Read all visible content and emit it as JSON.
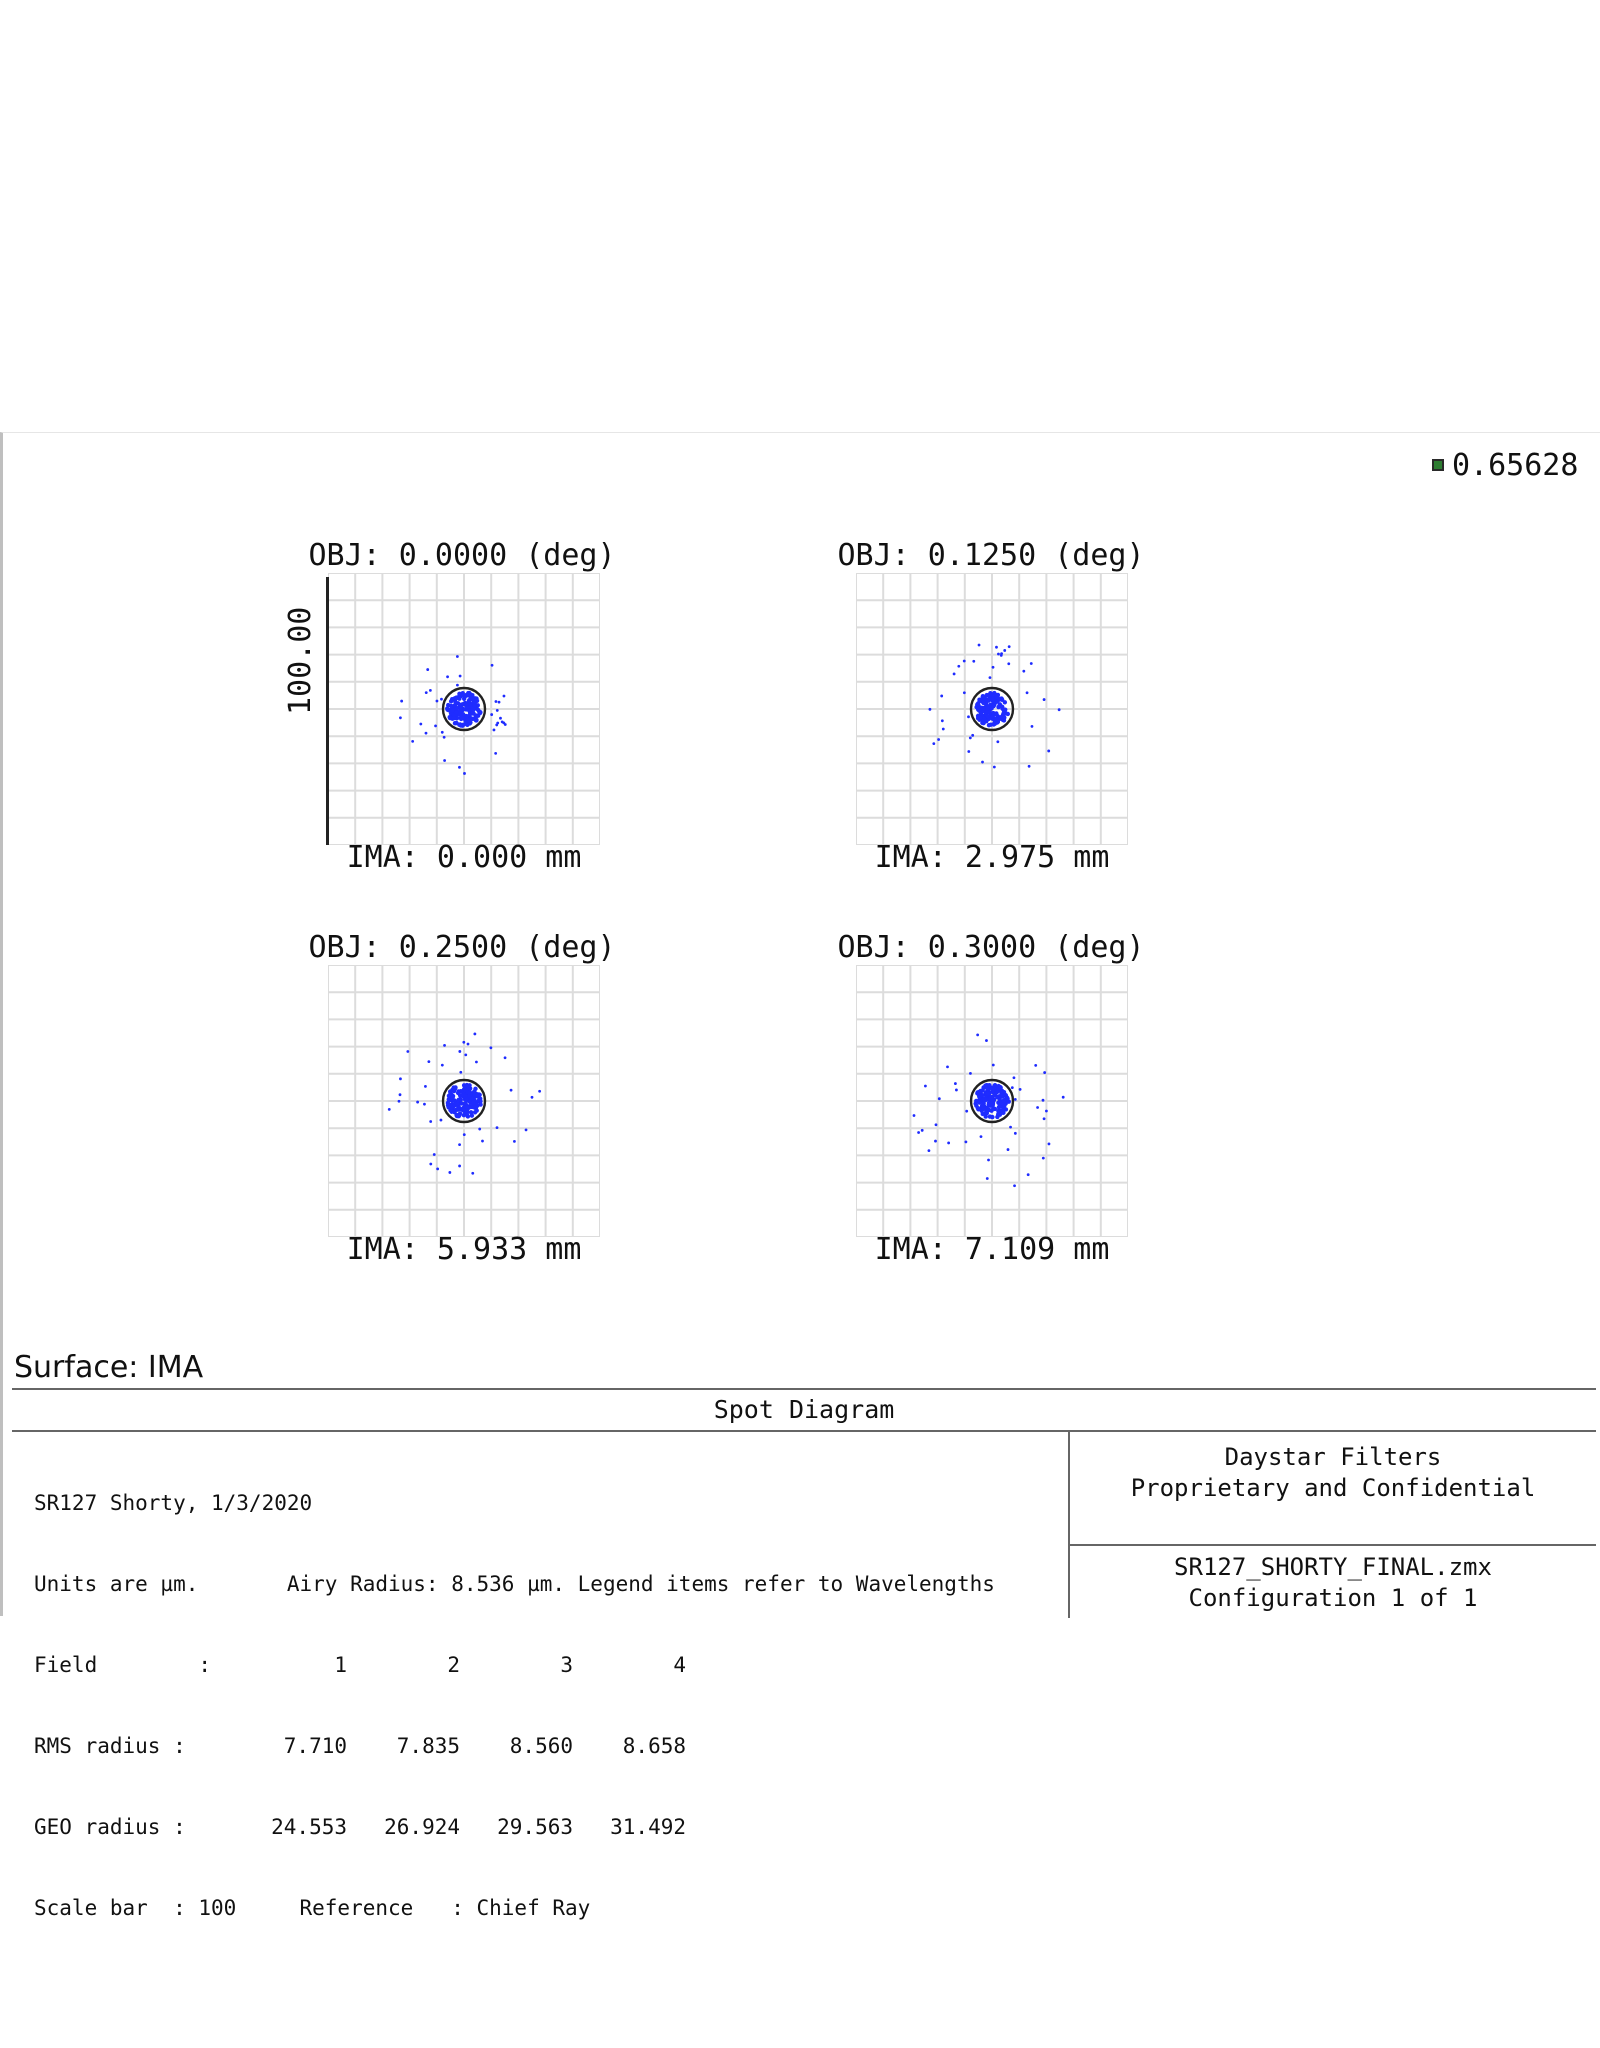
{
  "legend": {
    "wavelength": "0.65628",
    "swatch_color": "#2e7d32"
  },
  "plots": [
    {
      "obj": "OBJ: 0.0000 (deg)",
      "ima": "IMA: 0.000 mm"
    },
    {
      "obj": "OBJ: 0.1250 (deg)",
      "ima": "IMA: 2.975 mm"
    },
    {
      "obj": "OBJ: 0.2500 (deg)",
      "ima": "IMA: 5.933 mm"
    },
    {
      "obj": "OBJ: 0.3000 (deg)",
      "ima": "IMA: 7.109 mm"
    }
  ],
  "scale_bar_label": "100.00",
  "surface": "Surface: IMA",
  "panel": {
    "title": "Spot Diagram",
    "line1": "SR127 Shorty, 1/3/2020",
    "line2": "Units are µm.       Airy Radius: 8.536 µm. Legend items refer to Wavelengths",
    "field_label": "Field        :",
    "fields": [
      "1",
      "2",
      "3",
      "4"
    ],
    "rms_label": "RMS radius :",
    "rms": [
      "7.710",
      "7.835",
      "8.560",
      "8.658"
    ],
    "geo_label": "GEO radius :",
    "geo": [
      "24.553",
      "26.924",
      "29.563",
      "31.492"
    ],
    "scale_line": "Scale bar  : 100     Reference   : Chief Ray",
    "company": "Daystar Filters",
    "confidential": "Proprietary and Confidential",
    "filename": "SR127_SHORTY_FINAL.zmx",
    "configuration": "Configuration 1 of 1"
  },
  "colors": {
    "ray": "#1f2cff",
    "grid": "#dcdcdc",
    "airy": "#222222"
  }
}
